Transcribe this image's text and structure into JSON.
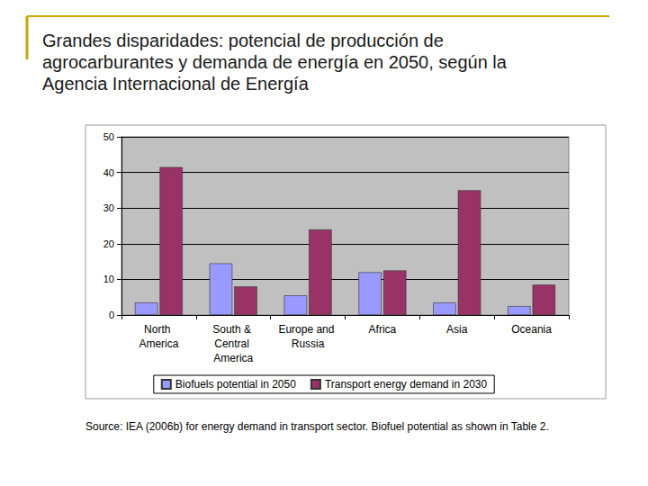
{
  "chart_data": {
    "type": "bar",
    "title": "Grandes disparidades: potencial de producción de agrocarburantes y demanda de energía en 2050, según la Agencia Internacional de Energía",
    "annotations": [
      "Source: IEA (2006b) for energy demand in transport sector. Biofuel potential as shown in Table 2."
    ],
    "categories": [
      "North America",
      "South & Central America",
      "Europe and Russia",
      "Africa",
      "Asia",
      "Oceania"
    ],
    "series": [
      {
        "name": "Biofuels potential in 2050",
        "color": "#9999ff",
        "values": [
          3.5,
          14.5,
          5.5,
          12,
          3.5,
          2.5
        ]
      },
      {
        "name": "Transport energy demand in 2030",
        "color": "#993366",
        "values": [
          41.5,
          8,
          24,
          12.5,
          35,
          8.5
        ]
      }
    ],
    "ylim": [
      0,
      50
    ],
    "yticks": [
      0,
      10,
      20,
      30,
      40,
      50
    ],
    "grid": true,
    "legend": "bottom"
  }
}
